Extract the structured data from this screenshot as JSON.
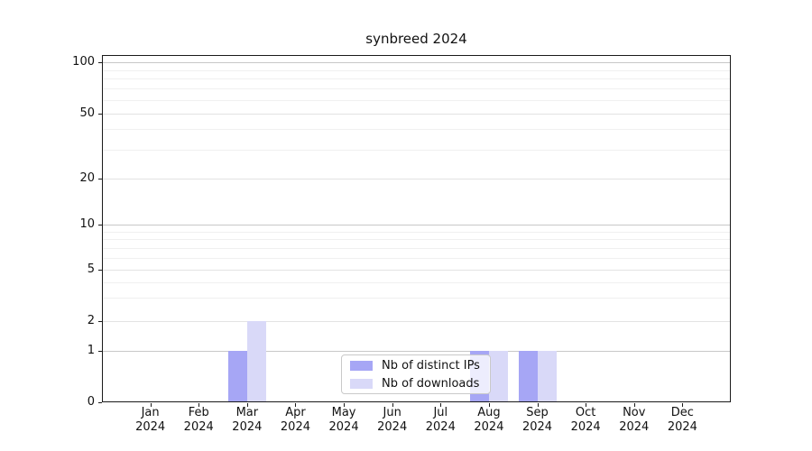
{
  "chart_data": {
    "type": "bar",
    "title": "synbreed 2024",
    "x_axis": {
      "categories": [
        "Jan",
        "Feb",
        "Mar",
        "Apr",
        "May",
        "Jun",
        "Jul",
        "Aug",
        "Sep",
        "Oct",
        "Nov",
        "Dec"
      ],
      "year": "2024"
    },
    "y_axis": {
      "scale": "log (with 0 baseline)",
      "ticks": [
        0,
        1,
        2,
        5,
        10,
        20,
        50,
        100
      ],
      "minor_ticks": [
        3,
        4,
        6,
        7,
        8,
        9,
        30,
        40,
        60,
        70,
        80,
        90
      ]
    },
    "series": [
      {
        "name": "Nb of distinct IPs",
        "color": "#a6a6f5",
        "values": [
          0,
          0,
          1,
          0,
          0,
          0,
          0,
          1,
          1,
          0,
          0,
          0
        ]
      },
      {
        "name": "Nb of downloads",
        "color": "#d9d9f8",
        "values": [
          0,
          0,
          2,
          0,
          0,
          0,
          0,
          1,
          1,
          0,
          0,
          0
        ]
      }
    ],
    "legend": {
      "position": "lower center inside plot",
      "entries": [
        "Nb of distinct IPs",
        "Nb of downloads"
      ]
    },
    "grid": "horizontal",
    "colors": {
      "axis": "#1a1a1a",
      "grid_major": "#c8c8c8",
      "grid_mid": "#e3e3e3",
      "grid_minor": "#f0f0f0"
    }
  }
}
